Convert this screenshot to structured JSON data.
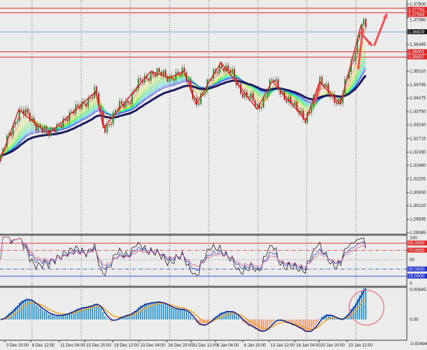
{
  "chart_data": {
    "type": "candlestick",
    "price_axis": {
      "ticks": [
        "1.37900",
        "1.37380",
        "1.36345",
        "1.35310",
        "1.34785",
        "1.34275",
        "1.33750",
        "1.33240",
        "1.32715",
        "1.32190",
        "1.31680",
        "1.31155",
        "1.30630",
        "1.30120",
        "1.29595",
        "1.29085"
      ],
      "range": [
        1.2903,
        1.3806
      ]
    },
    "time_axis": {
      "ticks": [
        "3 Dec 20:00",
        "8 Dec 12:00",
        "11 Dec 04:00",
        "15 Dec 20:00",
        "18 Dec 12:00",
        "23 Dec 04:00",
        "26 Dec 20:00",
        "31 Dec 12:00",
        "6 Jan 04:00",
        "8 Jan 20:00",
        "13 Jan 12:00",
        "16 Jan 04:00",
        "20 Jan 20:00",
        "23 Jan 12:00"
      ]
    },
    "zigzag": [
      {
        "t": "30 Nov 16:00",
        "p": 1.3184
      },
      {
        "t": "4 Dec 02:00",
        "p": 1.3383
      },
      {
        "t": "9 Dec 00:00",
        "p": 1.3289
      },
      {
        "t": "15 Dec 12:00",
        "p": 1.3452
      },
      {
        "t": "16 Dec 10:00",
        "p": 1.3313
      },
      {
        "t": "23 Dec 00:00",
        "p": 1.353
      },
      {
        "t": "25 Dec 12:00",
        "p": 1.3506
      },
      {
        "t": "27 Dec 16:00",
        "p": 1.353
      },
      {
        "t": "30 Dec 00:00",
        "p": 1.3404
      },
      {
        "t": "4 Jan 12:00",
        "p": 1.3565
      },
      {
        "t": "9 Jan 04:00",
        "p": 1.3385
      },
      {
        "t": "11 Jan 20:00",
        "p": 1.3493
      },
      {
        "t": "16 Jan 00:00",
        "p": 1.3342
      },
      {
        "t": "18 Jan 12:00",
        "p": 1.349
      },
      {
        "t": "21 Jan 16:00",
        "p": 1.3404
      },
      {
        "t": "23 Jan 16:00",
        "p": 1.3712
      }
    ],
    "horizontal_levels": [
      {
        "label": "1.37742",
        "price": 1.37742,
        "color": "#e02424"
      },
      {
        "label": "1.37569",
        "price": 1.37569,
        "color": "#e02424"
      },
      {
        "label": "1.36061",
        "price": 1.36061,
        "color": "#e02424"
      },
      {
        "label": "1.35857",
        "price": 1.35857,
        "color": "#e02424"
      }
    ],
    "current_price": {
      "label": "1.36829",
      "price": 1.36829,
      "line_color": "#7b9ccf"
    },
    "oscillator": {
      "range": [
        0,
        100
      ],
      "plain_labels": [
        {
          "label": "100",
          "value": 100
        },
        {
          "label": "50",
          "value": 50
        },
        {
          "label": "0",
          "value": 0
        }
      ],
      "levels": [
        {
          "label": "85.0000",
          "value": 85,
          "color": "#e02424"
        },
        {
          "label": "70.0000",
          "value": 70,
          "color": "#e02424"
        },
        {
          "label": "30.0000",
          "value": 30,
          "color": "#2233cc"
        },
        {
          "label": "15.0000",
          "value": 15,
          "color": "#2233cc"
        }
      ]
    },
    "macd": {
      "labels": [
        {
          "label": "0.0064511",
          "value": 0.0064511
        },
        {
          "label": "0.00",
          "value": 0
        },
        {
          "label": "-0.004941",
          "value": -0.004941
        }
      ],
      "positive_color": "#3a9ee0",
      "negative_color": "#f4a07a",
      "main_color": "#0a1a8c",
      "signal_color": "#f5a020"
    },
    "colors": {
      "ribbon_main": "#1a1a5e",
      "zigzag": "#d42020",
      "annotation": "#f05050"
    }
  }
}
